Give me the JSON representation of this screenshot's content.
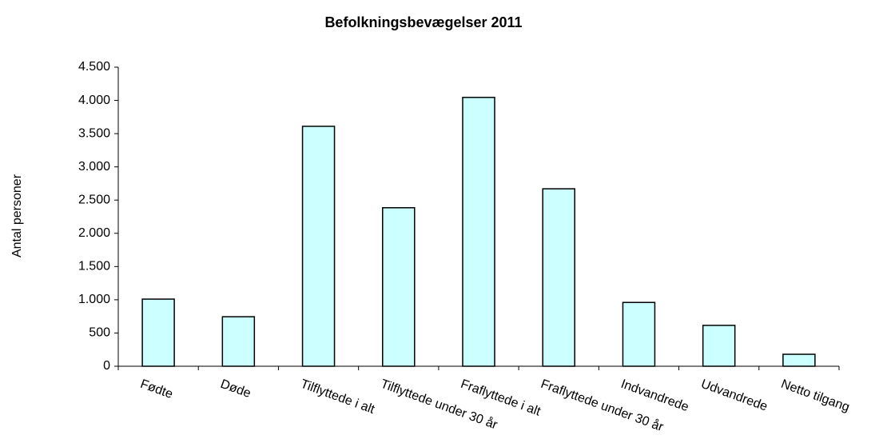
{
  "chart_data": {
    "type": "bar",
    "title": "Befolkningsbevægelser 2011",
    "y_label": "Antal personer",
    "categories": [
      "Fødte",
      "Døde",
      "Tilflyttede i alt",
      "Tilflyttede under 30 år",
      "Fraflyttede i alt",
      "Fraflyttede under 30 år",
      "Indvandrede",
      "Udvandrede",
      "Netto tilgang"
    ],
    "values": [
      1010,
      745,
      3610,
      2385,
      4045,
      2670,
      960,
      615,
      180
    ],
    "color": "#ccffff",
    "ylim": [
      0,
      4500
    ],
    "yticks": [
      0,
      500,
      {
        "value": 1000,
        "label": "1.000"
      },
      {
        "value": 1500,
        "label": "1.500"
      },
      {
        "value": 2000,
        "label": "2.000"
      },
      {
        "value": 2500,
        "label": "2.500"
      },
      {
        "value": 3000,
        "label": "3.000"
      },
      {
        "value": 3500,
        "label": "3.500"
      },
      {
        "value": 4000,
        "label": "4.000"
      },
      {
        "value": 4500,
        "label": "4.500"
      }
    ],
    "grid": false
  }
}
